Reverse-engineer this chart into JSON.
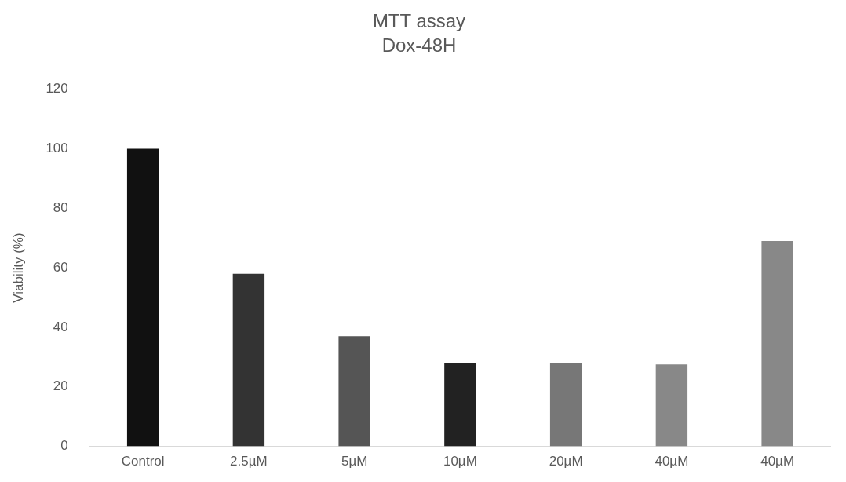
{
  "chart_data": {
    "type": "bar",
    "title": "MTT assay",
    "subtitle": "Dox-48H",
    "ylabel": "Viability (%)",
    "categories": [
      "Control",
      "2.5µM",
      "5µM",
      "10µM",
      "20µM",
      "40µM",
      "40µM"
    ],
    "values": [
      100,
      58,
      37,
      28,
      28,
      27.5,
      69
    ],
    "colors": [
      "#111111",
      "#333333",
      "#555555",
      "#222222",
      "#777777",
      "#888888",
      "#888888"
    ],
    "ylim": [
      0,
      120
    ],
    "yticks": [
      0,
      20,
      40,
      60,
      80,
      100,
      120
    ],
    "grid": false,
    "legend": false
  }
}
